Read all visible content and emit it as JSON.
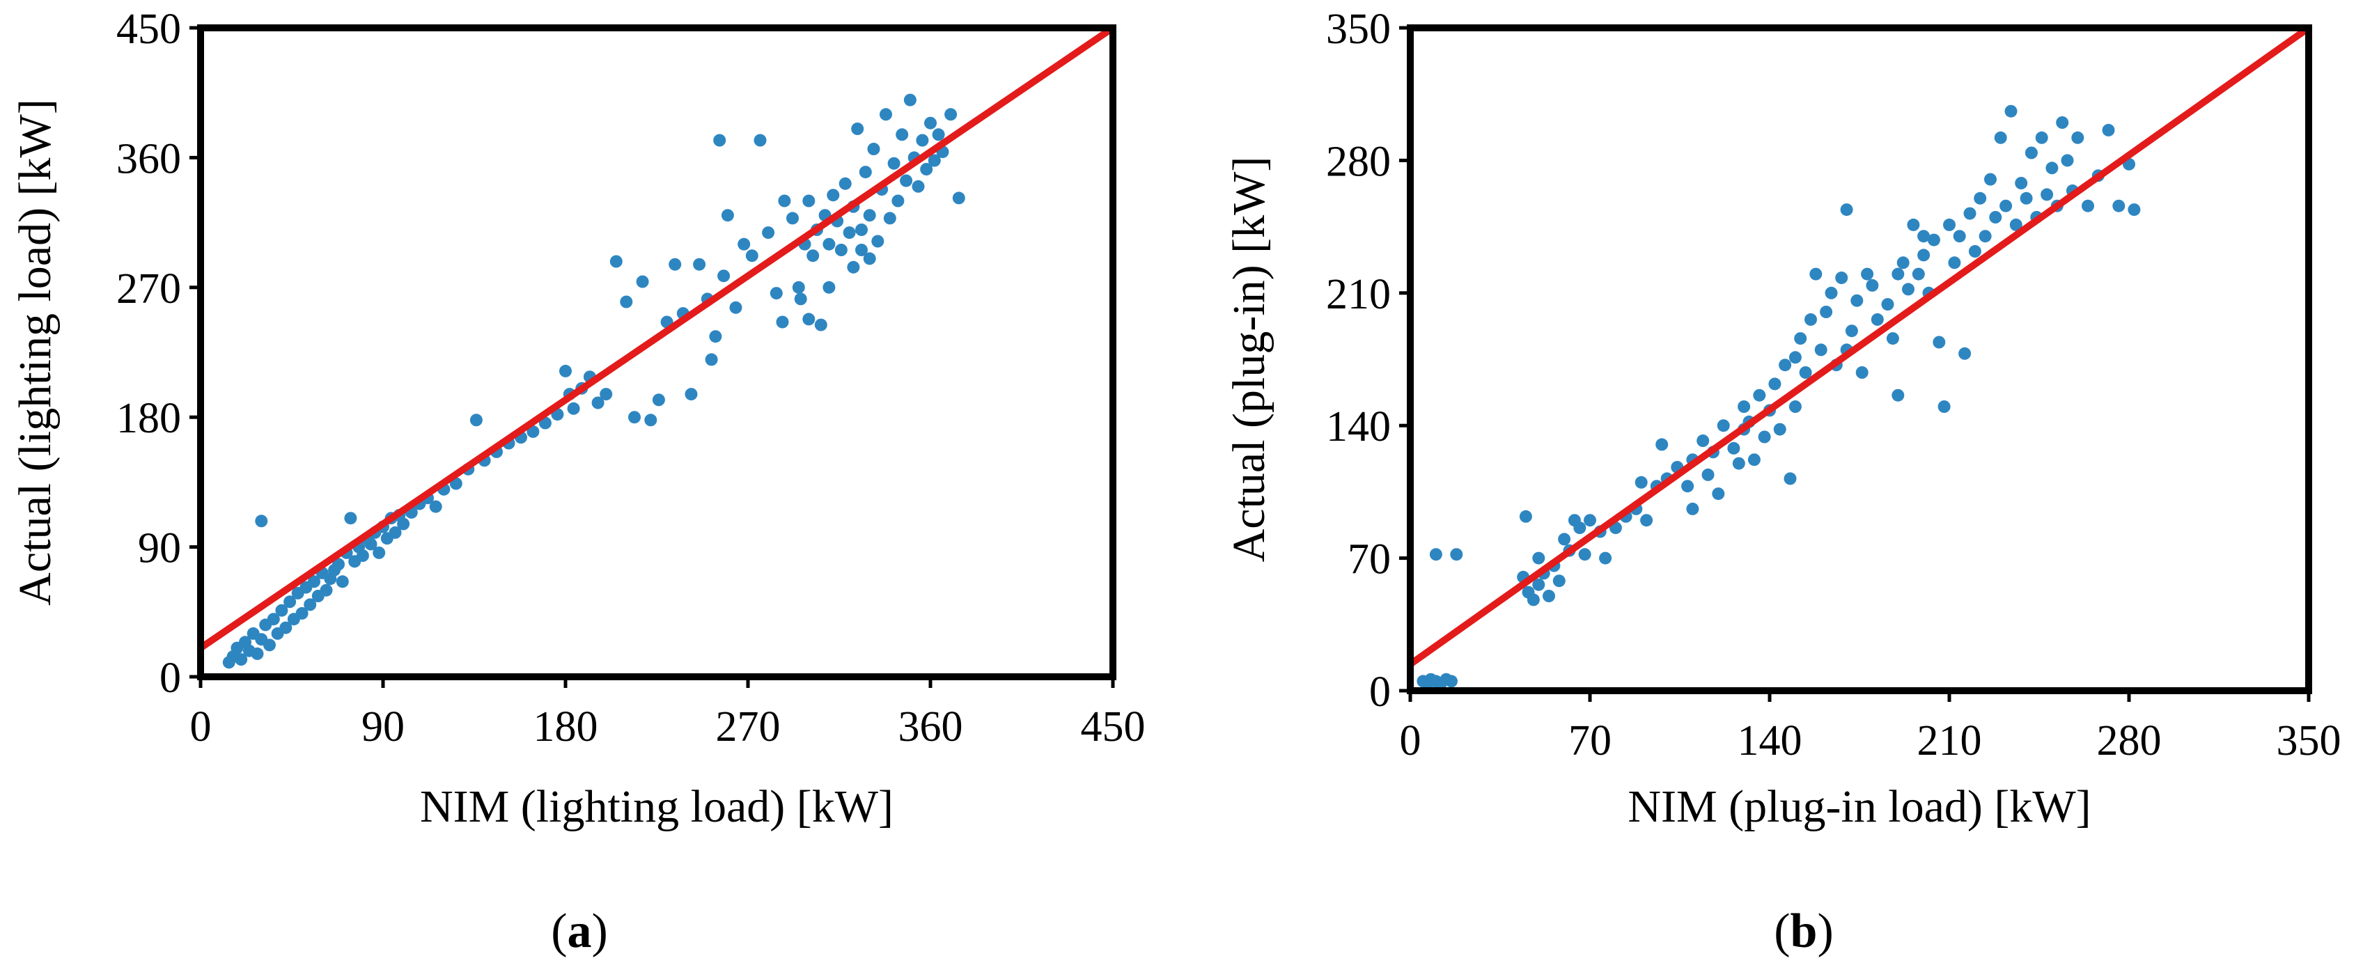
{
  "colors": {
    "points": "#2e86c1",
    "fit_line": "#e31b1b",
    "frame": "#000000"
  },
  "chart_data": [
    {
      "type": "scatter",
      "panel_label": "a",
      "xlabel": "NIM (lighting load) [kW]",
      "ylabel": "Actual (lighting load) [kW]",
      "xlim": [
        0,
        450
      ],
      "ylim": [
        0,
        450
      ],
      "xticks": [
        0,
        90,
        180,
        270,
        360,
        450
      ],
      "yticks": [
        0,
        90,
        180,
        270,
        360,
        450
      ],
      "fit_line": {
        "x": [
          0,
          450
        ],
        "y": [
          20,
          450
        ]
      },
      "points": [
        [
          14,
          10
        ],
        [
          16,
          14
        ],
        [
          18,
          20
        ],
        [
          20,
          12
        ],
        [
          22,
          24
        ],
        [
          24,
          18
        ],
        [
          26,
          30
        ],
        [
          28,
          16
        ],
        [
          30,
          26
        ],
        [
          30,
          108
        ],
        [
          32,
          36
        ],
        [
          34,
          22
        ],
        [
          36,
          40
        ],
        [
          38,
          30
        ],
        [
          40,
          46
        ],
        [
          42,
          34
        ],
        [
          44,
          52
        ],
        [
          46,
          40
        ],
        [
          48,
          58
        ],
        [
          50,
          44
        ],
        [
          52,
          62
        ],
        [
          54,
          50
        ],
        [
          56,
          66
        ],
        [
          58,
          56
        ],
        [
          60,
          72
        ],
        [
          62,
          60
        ],
        [
          64,
          68
        ],
        [
          66,
          74
        ],
        [
          68,
          78
        ],
        [
          70,
          66
        ],
        [
          72,
          86
        ],
        [
          74,
          110
        ],
        [
          76,
          80
        ],
        [
          78,
          90
        ],
        [
          80,
          84
        ],
        [
          82,
          96
        ],
        [
          84,
          92
        ],
        [
          86,
          100
        ],
        [
          88,
          86
        ],
        [
          90,
          104
        ],
        [
          92,
          96
        ],
        [
          94,
          110
        ],
        [
          96,
          100
        ],
        [
          98,
          112
        ],
        [
          100,
          106
        ],
        [
          104,
          114
        ],
        [
          108,
          120
        ],
        [
          112,
          124
        ],
        [
          116,
          118
        ],
        [
          120,
          130
        ],
        [
          126,
          134
        ],
        [
          132,
          144
        ],
        [
          136,
          178
        ],
        [
          140,
          150
        ],
        [
          146,
          156
        ],
        [
          152,
          162
        ],
        [
          158,
          166
        ],
        [
          164,
          170
        ],
        [
          170,
          176
        ],
        [
          176,
          182
        ],
        [
          180,
          212
        ],
        [
          182,
          196
        ],
        [
          184,
          186
        ],
        [
          188,
          200
        ],
        [
          192,
          208
        ],
        [
          196,
          190
        ],
        [
          200,
          196
        ],
        [
          205,
          288
        ],
        [
          210,
          260
        ],
        [
          214,
          180
        ],
        [
          218,
          274
        ],
        [
          222,
          178
        ],
        [
          226,
          192
        ],
        [
          230,
          246
        ],
        [
          234,
          286
        ],
        [
          238,
          252
        ],
        [
          242,
          196
        ],
        [
          246,
          286
        ],
        [
          250,
          262
        ],
        [
          252,
          220
        ],
        [
          254,
          236
        ],
        [
          256,
          372
        ],
        [
          258,
          278
        ],
        [
          260,
          320
        ],
        [
          264,
          256
        ],
        [
          268,
          300
        ],
        [
          272,
          292
        ],
        [
          276,
          372
        ],
        [
          280,
          308
        ],
        [
          284,
          266
        ],
        [
          288,
          330
        ],
        [
          292,
          318
        ],
        [
          296,
          262
        ],
        [
          298,
          300
        ],
        [
          300,
          330
        ],
        [
          302,
          292
        ],
        [
          304,
          310
        ],
        [
          306,
          244
        ],
        [
          308,
          320
        ],
        [
          310,
          300
        ],
        [
          312,
          334
        ],
        [
          314,
          316
        ],
        [
          316,
          296
        ],
        [
          318,
          342
        ],
        [
          320,
          308
        ],
        [
          322,
          326
        ],
        [
          324,
          380
        ],
        [
          326,
          310
        ],
        [
          328,
          350
        ],
        [
          330,
          320
        ],
        [
          332,
          366
        ],
        [
          334,
          302
        ],
        [
          336,
          338
        ],
        [
          338,
          390
        ],
        [
          340,
          318
        ],
        [
          342,
          356
        ],
        [
          344,
          330
        ],
        [
          346,
          376
        ],
        [
          348,
          344
        ],
        [
          350,
          400
        ],
        [
          352,
          360
        ],
        [
          354,
          340
        ],
        [
          356,
          372
        ],
        [
          358,
          352
        ],
        [
          360,
          384
        ],
        [
          362,
          358
        ],
        [
          364,
          376
        ],
        [
          366,
          364
        ],
        [
          370,
          390
        ],
        [
          374,
          332
        ],
        [
          326,
          296
        ],
        [
          330,
          290
        ],
        [
          322,
          284
        ],
        [
          310,
          270
        ],
        [
          300,
          248
        ],
        [
          295,
          270
        ],
        [
          287,
          246
        ]
      ]
    },
    {
      "type": "scatter",
      "panel_label": "b",
      "xlabel": "NIM (plug-in load) [kW]",
      "ylabel": "Actual (plug-in) [kW]",
      "xlim": [
        0,
        350
      ],
      "ylim": [
        0,
        350
      ],
      "xticks": [
        0,
        70,
        140,
        210,
        280,
        350
      ],
      "yticks": [
        0,
        70,
        140,
        210,
        280,
        350
      ],
      "fit_line": {
        "x": [
          0,
          350
        ],
        "y": [
          14,
          350
        ]
      },
      "points": [
        [
          5,
          5
        ],
        [
          7,
          4
        ],
        [
          8,
          6
        ],
        [
          10,
          5
        ],
        [
          10,
          72
        ],
        [
          12,
          4
        ],
        [
          14,
          6
        ],
        [
          16,
          5
        ],
        [
          18,
          72
        ],
        [
          44,
          60
        ],
        [
          45,
          92
        ],
        [
          46,
          52
        ],
        [
          48,
          48
        ],
        [
          50,
          56
        ],
        [
          50,
          70
        ],
        [
          52,
          62
        ],
        [
          54,
          50
        ],
        [
          56,
          66
        ],
        [
          58,
          58
        ],
        [
          60,
          80
        ],
        [
          62,
          74
        ],
        [
          64,
          90
        ],
        [
          66,
          86
        ],
        [
          68,
          72
        ],
        [
          70,
          90
        ],
        [
          74,
          84
        ],
        [
          76,
          70
        ],
        [
          80,
          86
        ],
        [
          84,
          92
        ],
        [
          88,
          96
        ],
        [
          92,
          90
        ],
        [
          96,
          108
        ],
        [
          98,
          130
        ],
        [
          100,
          112
        ],
        [
          104,
          118
        ],
        [
          108,
          108
        ],
        [
          110,
          122
        ],
        [
          114,
          132
        ],
        [
          116,
          114
        ],
        [
          118,
          126
        ],
        [
          120,
          104
        ],
        [
          122,
          140
        ],
        [
          126,
          128
        ],
        [
          128,
          120
        ],
        [
          130,
          138
        ],
        [
          132,
          142
        ],
        [
          134,
          122
        ],
        [
          136,
          156
        ],
        [
          138,
          134
        ],
        [
          140,
          148
        ],
        [
          142,
          162
        ],
        [
          144,
          138
        ],
        [
          146,
          172
        ],
        [
          148,
          112
        ],
        [
          150,
          176
        ],
        [
          152,
          186
        ],
        [
          154,
          168
        ],
        [
          156,
          196
        ],
        [
          158,
          220
        ],
        [
          160,
          180
        ],
        [
          162,
          200
        ],
        [
          164,
          210
        ],
        [
          166,
          172
        ],
        [
          168,
          218
        ],
        [
          170,
          254
        ],
        [
          172,
          190
        ],
        [
          174,
          206
        ],
        [
          176,
          168
        ],
        [
          178,
          220
        ],
        [
          180,
          214
        ],
        [
          182,
          196
        ],
        [
          186,
          204
        ],
        [
          188,
          186
        ],
        [
          190,
          156
        ],
        [
          192,
          226
        ],
        [
          194,
          212
        ],
        [
          196,
          246
        ],
        [
          198,
          220
        ],
        [
          200,
          230
        ],
        [
          202,
          210
        ],
        [
          204,
          238
        ],
        [
          206,
          184
        ],
        [
          208,
          150
        ],
        [
          210,
          246
        ],
        [
          212,
          226
        ],
        [
          214,
          240
        ],
        [
          216,
          178
        ],
        [
          218,
          252
        ],
        [
          220,
          232
        ],
        [
          222,
          260
        ],
        [
          224,
          240
        ],
        [
          226,
          270
        ],
        [
          228,
          250
        ],
        [
          230,
          292
        ],
        [
          232,
          256
        ],
        [
          234,
          306
        ],
        [
          236,
          246
        ],
        [
          238,
          268
        ],
        [
          240,
          260
        ],
        [
          242,
          284
        ],
        [
          244,
          250
        ],
        [
          246,
          292
        ],
        [
          248,
          262
        ],
        [
          250,
          276
        ],
        [
          252,
          256
        ],
        [
          254,
          300
        ],
        [
          256,
          280
        ],
        [
          258,
          264
        ],
        [
          260,
          292
        ],
        [
          264,
          256
        ],
        [
          268,
          272
        ],
        [
          272,
          296
        ],
        [
          276,
          256
        ],
        [
          280,
          278
        ],
        [
          282,
          254
        ],
        [
          200,
          240
        ],
        [
          190,
          220
        ],
        [
          170,
          180
        ],
        [
          150,
          150
        ],
        [
          130,
          150
        ],
        [
          110,
          96
        ],
        [
          90,
          110
        ]
      ]
    }
  ]
}
